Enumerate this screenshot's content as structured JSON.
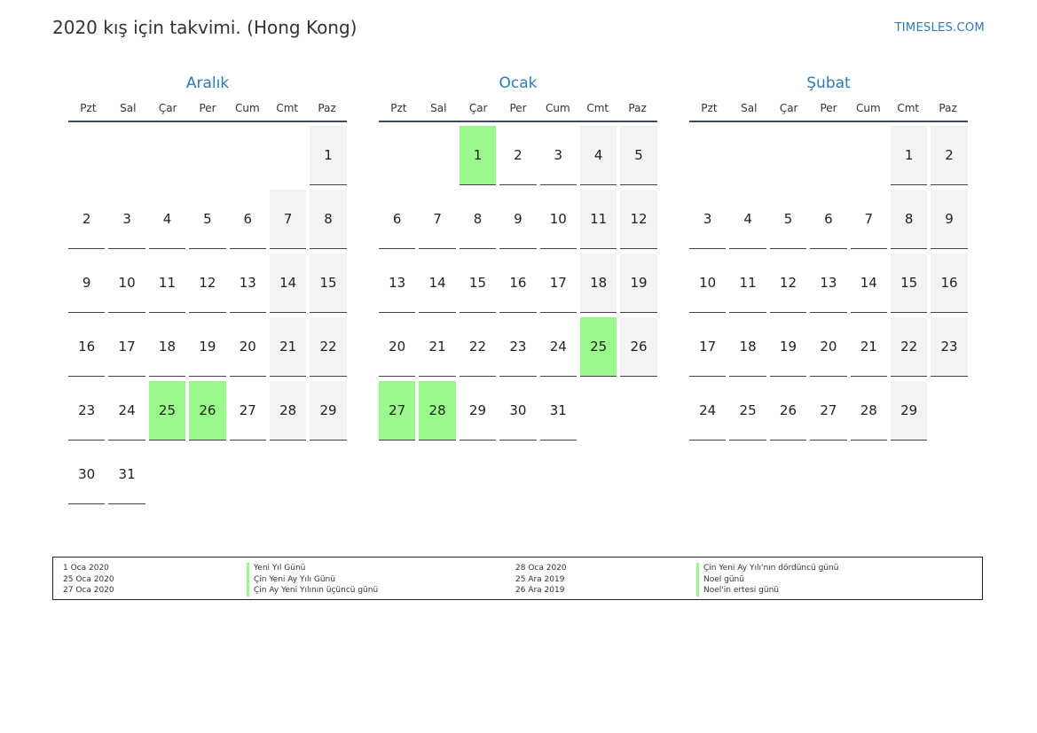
{
  "header": {
    "title": "2020 kış için takvimi. (Hong Kong)",
    "site": "TIMESLES.COM"
  },
  "weekdays": [
    "Pzt",
    "Sal",
    "Çar",
    "Per",
    "Cum",
    "Cmt",
    "Paz"
  ],
  "months": [
    {
      "name": "Aralık",
      "weeks": [
        [
          null,
          null,
          null,
          null,
          null,
          null,
          1
        ],
        [
          2,
          3,
          4,
          5,
          6,
          7,
          8
        ],
        [
          9,
          10,
          11,
          12,
          13,
          14,
          15
        ],
        [
          16,
          17,
          18,
          19,
          20,
          21,
          22
        ],
        [
          23,
          24,
          25,
          26,
          27,
          28,
          29
        ],
        [
          30,
          31,
          null,
          null,
          null,
          null,
          null
        ]
      ],
      "holidays": [
        25,
        26
      ]
    },
    {
      "name": "Ocak",
      "weeks": [
        [
          null,
          null,
          1,
          2,
          3,
          4,
          5
        ],
        [
          6,
          7,
          8,
          9,
          10,
          11,
          12
        ],
        [
          13,
          14,
          15,
          16,
          17,
          18,
          19
        ],
        [
          20,
          21,
          22,
          23,
          24,
          25,
          26
        ],
        [
          27,
          28,
          29,
          30,
          31,
          null,
          null
        ]
      ],
      "holidays": [
        1,
        25,
        27,
        28
      ]
    },
    {
      "name": "Şubat",
      "weeks": [
        [
          null,
          null,
          null,
          null,
          null,
          1,
          2
        ],
        [
          3,
          4,
          5,
          6,
          7,
          8,
          9
        ],
        [
          10,
          11,
          12,
          13,
          14,
          15,
          16
        ],
        [
          17,
          18,
          19,
          20,
          21,
          22,
          23
        ],
        [
          24,
          25,
          26,
          27,
          28,
          29,
          null
        ]
      ],
      "holidays": []
    }
  ],
  "legend": {
    "left": {
      "dates": [
        "1 Oca 2020",
        "25 Oca 2020",
        "27 Oca 2020"
      ],
      "names": [
        "Yeni Yıl Günü",
        "Çin Yeni Ay Yılı Günü",
        "Çin Ay Yeni Yılının üçüncü günü"
      ]
    },
    "right": {
      "dates": [
        "28 Oca 2020",
        "25 Ara 2019",
        "26 Ara 2019"
      ],
      "names": [
        "Çin Yeni Ay Yılı'nın dördüncü günü",
        "Noel günü",
        "Noel'in ertesi günü"
      ]
    }
  },
  "colors": {
    "accent": "#2c7ab8",
    "holiday": "#99f98b",
    "weekend": "#f3f3f3"
  }
}
